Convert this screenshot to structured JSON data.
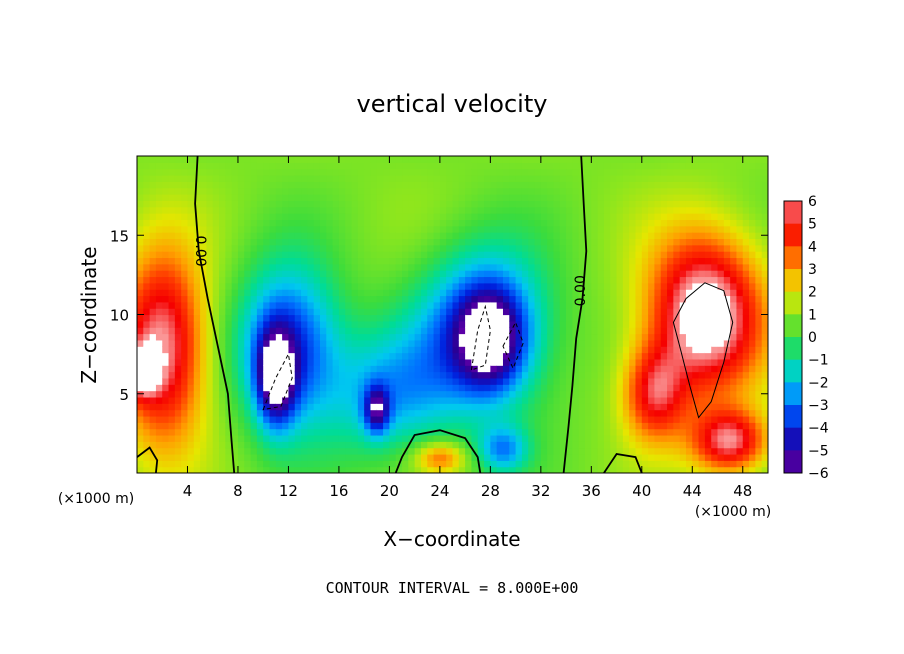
{
  "chart_data": {
    "type": "heatmap",
    "title": "vertical velocity",
    "xlabel": "X−coordinate",
    "ylabel": "Z−coordinate",
    "x_unit": "(×1000 m)",
    "xlim": [
      0,
      50
    ],
    "ylim": [
      0,
      20
    ],
    "x_ticks": [
      4,
      8,
      12,
      16,
      20,
      24,
      28,
      32,
      36,
      40,
      44,
      48
    ],
    "y_ticks": [
      5,
      10,
      15
    ],
    "colorbar": {
      "levels": [
        6,
        5,
        4,
        3,
        2,
        1,
        0,
        -1,
        -2,
        -3,
        -4,
        -5,
        -6
      ],
      "labels": [
        "6",
        "5",
        "4",
        "3",
        "2",
        "1",
        "0",
        "−1",
        "−2",
        "−3",
        "−4",
        "−5",
        "−6"
      ]
    },
    "contour_labels": [
      "0.00",
      "0.00"
    ],
    "footer": "CONTOUR INTERVAL = 8.000E+00",
    "features": [
      {
        "kind": "updraft",
        "x": 2,
        "z": 8,
        "amp": 5.5,
        "sx": 3.5,
        "sz": 6
      },
      {
        "kind": "updraft",
        "x": 0.5,
        "z": 6.5,
        "amp": 4,
        "sx": 1.2,
        "sz": 1.5
      },
      {
        "kind": "updraft",
        "x": 45,
        "z": 10,
        "amp": 6.5,
        "sx": 4.5,
        "sz": 5
      },
      {
        "kind": "updraft",
        "x": 41,
        "z": 5,
        "amp": 4,
        "sx": 2.5,
        "sz": 3
      },
      {
        "kind": "updraft",
        "x": 47,
        "z": 2,
        "amp": 5,
        "sx": 3,
        "sz": 2
      },
      {
        "kind": "updraft",
        "x": 24,
        "z": 1,
        "amp": 3,
        "sx": 2,
        "sz": 1
      },
      {
        "kind": "downdraft",
        "x": 12,
        "z": 8,
        "amp": -5,
        "sx": 4,
        "sz": 5
      },
      {
        "kind": "downdraft",
        "x": 11,
        "z": 6,
        "amp": -5,
        "sx": 1.5,
        "sz": 3
      },
      {
        "kind": "downdraft",
        "x": 27.5,
        "z": 9,
        "amp": -5,
        "sx": 5,
        "sz": 5
      },
      {
        "kind": "downdraft",
        "x": 28,
        "z": 8.5,
        "amp": -4,
        "sx": 2.5,
        "sz": 3
      },
      {
        "kind": "downdraft",
        "x": 20,
        "z": 5,
        "amp": -3,
        "sx": 5,
        "sz": 4
      },
      {
        "kind": "downdraft",
        "x": 29,
        "z": 1.5,
        "amp": -3,
        "sx": 2,
        "sz": 1.5
      },
      {
        "kind": "downdraft",
        "x": 19,
        "z": 4,
        "amp": -4,
        "sx": 1,
        "sz": 1.5
      }
    ],
    "grid": false
  }
}
